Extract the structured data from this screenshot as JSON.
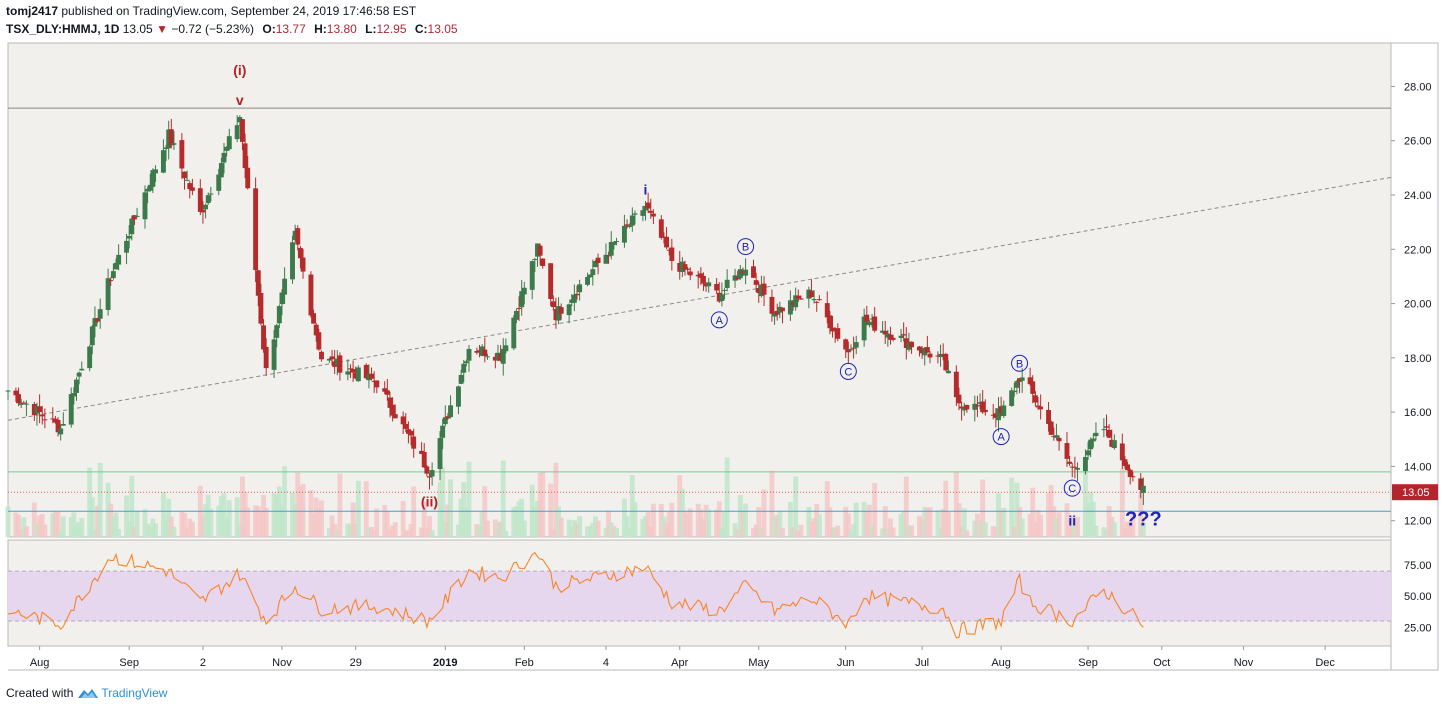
{
  "header": {
    "author": "tomj2417",
    "published": "published on TradingView.com, September 24, 2019 17:46:58 EST",
    "symbol": "TSX_DLY:HMMJ, 1D",
    "last": "13.05",
    "change_arrow": "▼",
    "change": "−0.72 (−5.23%)",
    "o_label": "O:",
    "o": "13.77",
    "h_label": "H:",
    "h": "13.80",
    "l_label": "L:",
    "l": "12.95",
    "c_label": "C:",
    "c": "13.05"
  },
  "footer": {
    "created_with": "Created with",
    "brand": "TradingView"
  },
  "colors": {
    "background": "#f2f0ed",
    "up": "#53b987",
    "down": "#eb4d5c",
    "candle_body": "#3c7a4b",
    "candle_down_body": "#b52b2b",
    "wave_red": "#b22222",
    "wave_blue": "#1c23b6",
    "rsi": "#f7862a",
    "rsi_band": "#e6d6ee",
    "price_tag": "#b5242c",
    "level_green": "#6fcf97",
    "level_blue": "#3aa1e0",
    "resistance": "#888888"
  },
  "chart_data": [
    {
      "type": "candlestick",
      "title": "TSX_DLY:HMMJ, 1D",
      "y_ticks": [
        "28.00",
        "26.00",
        "24.00",
        "22.00",
        "20.00",
        "18.00",
        "16.00",
        "14.00",
        "12.00"
      ],
      "ylim": [
        11.4,
        29.6
      ],
      "x_ticks": [
        "Aug",
        "Sep",
        "2",
        "Nov",
        "29",
        "2019",
        "Feb",
        "4",
        "Apr",
        "May",
        "Jun",
        "Jul",
        "Aug",
        "Sep",
        "Oct",
        "Nov",
        "Dec"
      ],
      "x_range": [
        "2018-07-20",
        "2019-12-27"
      ],
      "last_price_label": "13.05",
      "pivots": [
        {
          "date": "2018-07-20",
          "price": 16.8
        },
        {
          "date": "2018-08-09",
          "price": 15.4
        },
        {
          "date": "2018-08-28",
          "price": 21.0
        },
        {
          "date": "2018-09-19",
          "price": 26.2
        },
        {
          "date": "2018-10-01",
          "price": 23.3
        },
        {
          "date": "2018-10-16",
          "price": 26.9
        },
        {
          "date": "2018-10-26",
          "price": 17.5
        },
        {
          "date": "2018-11-06",
          "price": 22.5
        },
        {
          "date": "2018-11-16",
          "price": 18.0
        },
        {
          "date": "2018-12-07",
          "price": 17.1
        },
        {
          "date": "2018-12-27",
          "price": 13.8
        },
        {
          "date": "2019-01-11",
          "price": 18.4
        },
        {
          "date": "2019-01-23",
          "price": 18.1
        },
        {
          "date": "2019-02-06",
          "price": 22.0
        },
        {
          "date": "2019-02-13",
          "price": 19.6
        },
        {
          "date": "2019-03-19",
          "price": 23.6
        },
        {
          "date": "2019-03-29",
          "price": 21.6
        },
        {
          "date": "2019-04-16",
          "price": 20.3
        },
        {
          "date": "2019-04-26",
          "price": 21.4
        },
        {
          "date": "2019-05-07",
          "price": 19.7
        },
        {
          "date": "2019-05-21",
          "price": 20.4
        },
        {
          "date": "2019-06-04",
          "price": 18.2
        },
        {
          "date": "2019-06-10",
          "price": 19.4
        },
        {
          "date": "2019-07-10",
          "price": 17.9
        },
        {
          "date": "2019-07-15",
          "price": 16.4
        },
        {
          "date": "2019-08-01",
          "price": 15.9
        },
        {
          "date": "2019-08-08",
          "price": 17.3
        },
        {
          "date": "2019-08-12",
          "price": 16.8
        },
        {
          "date": "2019-08-28",
          "price": 13.9
        },
        {
          "date": "2019-09-09",
          "price": 15.4
        },
        {
          "date": "2019-09-24",
          "price": 13.05
        }
      ],
      "levels": [
        {
          "name": "resistance",
          "price": 27.2
        },
        {
          "name": "green",
          "price": 13.8
        },
        {
          "name": "blue",
          "price": 12.35
        },
        {
          "name": "last",
          "price": 13.05
        }
      ],
      "trendline": {
        "from": {
          "date": "2018-07-20",
          "price": 15.7
        },
        "to": {
          "date": "2019-12-27",
          "price": 24.65
        }
      },
      "annotations": [
        {
          "text": "(i)",
          "date": "2018-10-16",
          "price": 28.6,
          "color": "red"
        },
        {
          "text": "v",
          "date": "2018-10-16",
          "price": 27.5,
          "color": "red"
        },
        {
          "text": "(ii)",
          "date": "2018-12-27",
          "price": 12.7,
          "color": "red"
        },
        {
          "text": "i",
          "date": "2019-03-19",
          "price": 24.2,
          "color": "blue"
        },
        {
          "text": "A",
          "date": "2019-04-16",
          "price": 19.4,
          "circled": true
        },
        {
          "text": "B",
          "date": "2019-04-26",
          "price": 22.1,
          "circled": true
        },
        {
          "text": "C",
          "date": "2019-06-04",
          "price": 17.5,
          "circled": true
        },
        {
          "text": "A",
          "date": "2019-08-01",
          "price": 15.1,
          "circled": true
        },
        {
          "text": "B",
          "date": "2019-08-08",
          "price": 17.8,
          "circled": true
        },
        {
          "text": "C",
          "date": "2019-08-28",
          "price": 13.2,
          "circled": true
        },
        {
          "text": "ii",
          "date": "2019-08-28",
          "price": 12.0,
          "color": "blue"
        },
        {
          "text": "???",
          "date": "2019-09-24",
          "price": 12.0,
          "color": "blue"
        }
      ]
    },
    {
      "type": "line",
      "title": "RSI",
      "y_ticks": [
        "75.00",
        "50.00",
        "25.00"
      ],
      "ylim": [
        10,
        95
      ],
      "band": [
        30,
        70
      ],
      "pivots": [
        {
          "date": "2018-07-20",
          "value": 38
        },
        {
          "date": "2018-08-09",
          "value": 28
        },
        {
          "date": "2018-08-28",
          "value": 82
        },
        {
          "date": "2018-09-19",
          "value": 70
        },
        {
          "date": "2018-10-01",
          "value": 45
        },
        {
          "date": "2018-10-16",
          "value": 68
        },
        {
          "date": "2018-10-26",
          "value": 30
        },
        {
          "date": "2018-11-06",
          "value": 58
        },
        {
          "date": "2018-11-16",
          "value": 40
        },
        {
          "date": "2018-12-07",
          "value": 42
        },
        {
          "date": "2018-12-27",
          "value": 30
        },
        {
          "date": "2019-01-11",
          "value": 70
        },
        {
          "date": "2019-01-23",
          "value": 65
        },
        {
          "date": "2019-02-06",
          "value": 85
        },
        {
          "date": "2019-02-13",
          "value": 58
        },
        {
          "date": "2019-03-19",
          "value": 73
        },
        {
          "date": "2019-03-29",
          "value": 45
        },
        {
          "date": "2019-04-16",
          "value": 38
        },
        {
          "date": "2019-04-26",
          "value": 58
        },
        {
          "date": "2019-05-07",
          "value": 38
        },
        {
          "date": "2019-05-21",
          "value": 48
        },
        {
          "date": "2019-06-04",
          "value": 28
        },
        {
          "date": "2019-06-10",
          "value": 50
        },
        {
          "date": "2019-07-10",
          "value": 40
        },
        {
          "date": "2019-07-15",
          "value": 22
        },
        {
          "date": "2019-08-01",
          "value": 30
        },
        {
          "date": "2019-08-08",
          "value": 62
        },
        {
          "date": "2019-08-12",
          "value": 45
        },
        {
          "date": "2019-08-28",
          "value": 30
        },
        {
          "date": "2019-09-09",
          "value": 55
        },
        {
          "date": "2019-09-24",
          "value": 27
        }
      ]
    }
  ]
}
